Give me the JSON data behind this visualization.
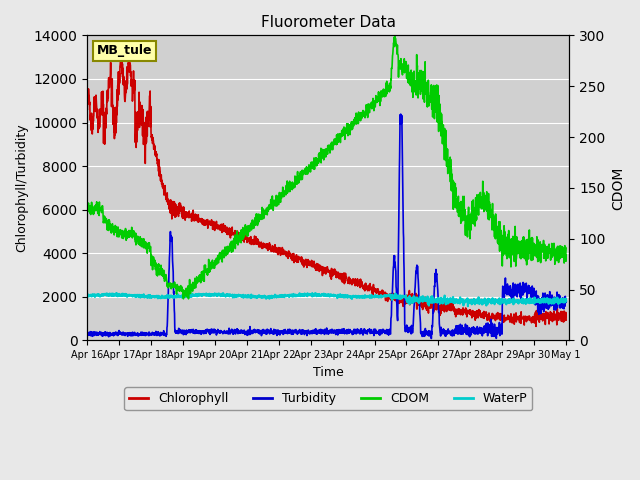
{
  "title": "Fluorometer Data",
  "xlabel": "Time",
  "ylabel_left": "Chlorophyll/Turbidity",
  "ylabel_right": "CDOM",
  "ylim_left": [
    0,
    14000
  ],
  "ylim_right": [
    0,
    300
  ],
  "yticks_left": [
    0,
    2000,
    4000,
    6000,
    8000,
    10000,
    12000,
    14000
  ],
  "yticks_right": [
    0,
    50,
    100,
    150,
    200,
    250,
    300
  ],
  "xtick_labels": [
    "Apr 16",
    "Apr 17",
    "Apr 18",
    "Apr 19",
    "Apr 20",
    "Apr 21",
    "Apr 22",
    "Apr 23",
    "Apr 24",
    "Apr 25",
    "Apr 26",
    "Apr 27",
    "Apr 28",
    "Apr 29",
    "Apr 30",
    "May 1"
  ],
  "station_label": "MB_tule",
  "bg_color": "#e8e8e8",
  "plot_bg_color": "#d0d0d0",
  "legend_entries": [
    "Chlorophyll",
    "Turbidity",
    "CDOM",
    "WaterP"
  ],
  "legend_colors": [
    "#cc0000",
    "#0000cc",
    "#00cc00",
    "#00cccc"
  ],
  "line_colors": {
    "chlorophyll": "#cc0000",
    "turbidity": "#0000dd",
    "cdom": "#00cc00",
    "waterp": "#00cccc"
  }
}
